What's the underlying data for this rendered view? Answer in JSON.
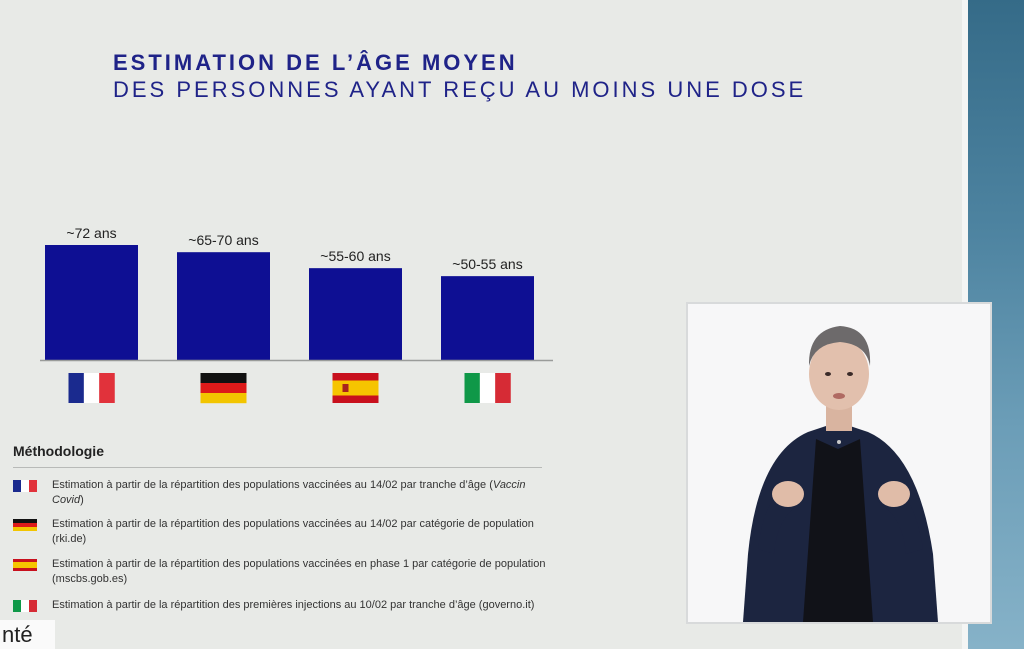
{
  "title": {
    "line1": "ESTIMATION DE L’ÂGE MOYEN",
    "line2": "DES PERSONNES AYANT REÇU AU MOINS UNE DOSE"
  },
  "chart_data": {
    "type": "bar",
    "categories": [
      "France",
      "Allemagne",
      "Espagne",
      "Italie"
    ],
    "values": [
      72,
      67.5,
      57.5,
      52.5
    ],
    "labels": [
      "~72 ans",
      "~65-70 ans",
      "~55-60 ans",
      "~50-55 ans"
    ],
    "xlabel": "",
    "ylabel": "",
    "ylim": [
      0,
      72
    ],
    "grid": false,
    "legend": "none",
    "bar_color": "#0e0f93",
    "flags": [
      "flag-france-icon",
      "flag-germany-icon",
      "flag-spain-icon",
      "flag-italy-icon"
    ]
  },
  "methodology": {
    "title": "Méthodologie",
    "items": [
      {
        "flag": "flag-france-icon",
        "text_part1": "Estimation à partir de la répartition des populations vaccinées au 14/02 par tranche d’âge (",
        "text_em": "Vaccin Covid",
        "text_part2": ")"
      },
      {
        "flag": "flag-germany-icon",
        "text_part1": "Estimation à partir de la répartition des populations vaccinées au 14/02 par catégorie de population (rki.de)",
        "text_em": "",
        "text_part2": ""
      },
      {
        "flag": "flag-spain-icon",
        "text_part1": "Estimation à partir de la répartition des populations vaccinées en phase 1 par catégorie de population  (mscbs.gob.es)",
        "text_em": "",
        "text_part2": ""
      },
      {
        "flag": "flag-italy-icon",
        "text_part1": "Estimation à partir de la répartition des premières injections au 10/02 par tranche d’âge (governo.it)",
        "text_em": "",
        "text_part2": ""
      }
    ]
  },
  "bottom_fragment": "nté",
  "colors": {
    "title": "#1f2388",
    "bar": "#0e0f93",
    "france": [
      "#1a2a8e",
      "#ffffff",
      "#e1323b"
    ],
    "germany": [
      "#111111",
      "#dd1a1a",
      "#f2c500"
    ],
    "spain": [
      "#c8101d",
      "#f6c400"
    ],
    "italy": [
      "#0f9848",
      "#ffffff",
      "#d62b35"
    ]
  }
}
